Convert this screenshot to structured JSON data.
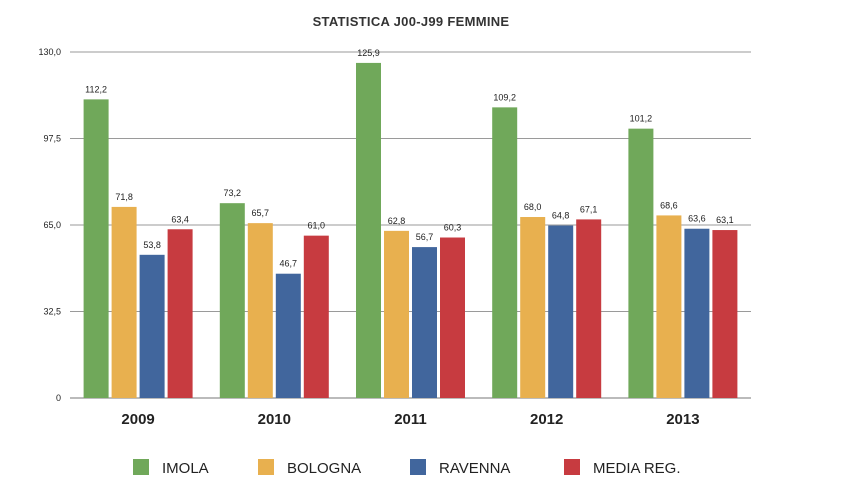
{
  "chart_data": {
    "type": "bar",
    "title": "STATISTICA J00-J99 FEMMINE",
    "xlabel": "",
    "ylabel": "",
    "categories": [
      "2009",
      "2010",
      "2011",
      "2012",
      "2013"
    ],
    "ylim": [
      0,
      130
    ],
    "yticks": [
      0,
      32.5,
      65,
      97.5,
      130
    ],
    "ytick_labels": [
      "0",
      "32,5",
      "65,0",
      "97,5",
      "130,0"
    ],
    "grid": true,
    "legend_position": "bottom",
    "series": [
      {
        "name": "IMOLA",
        "color": "#70a85a",
        "values": [
          112.2,
          73.2,
          125.9,
          109.2,
          101.2
        ],
        "labels": [
          "112,2",
          "73,2",
          "125,9",
          "109,2",
          "101,2"
        ]
      },
      {
        "name": "BOLOGNA",
        "color": "#e8b04f",
        "values": [
          71.8,
          65.7,
          62.8,
          68.0,
          68.6
        ],
        "labels": [
          "71,8",
          "65,7",
          "62,8",
          "68,0",
          "68,6"
        ]
      },
      {
        "name": "RAVENNA",
        "color": "#41669d",
        "values": [
          53.8,
          46.7,
          56.7,
          64.8,
          63.6
        ],
        "labels": [
          "53,8",
          "46,7",
          "56,7",
          "64,8",
          "63,6"
        ]
      },
      {
        "name": "MEDIA REG.",
        "color": "#c73b40",
        "values": [
          63.4,
          61.0,
          60.3,
          67.1,
          63.1
        ],
        "labels": [
          "63,4",
          "61,0",
          "60,3",
          "67,1",
          "63,1"
        ]
      }
    ]
  }
}
